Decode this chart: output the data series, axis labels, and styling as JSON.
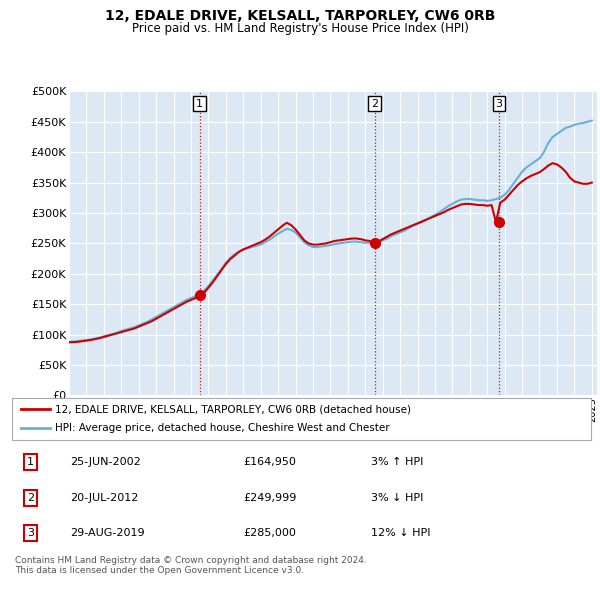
{
  "title": "12, EDALE DRIVE, KELSALL, TARPORLEY, CW6 0RB",
  "subtitle": "Price paid vs. HM Land Registry's House Price Index (HPI)",
  "legend_label_red": "12, EDALE DRIVE, KELSALL, TARPORLEY, CW6 0RB (detached house)",
  "legend_label_blue": "HPI: Average price, detached house, Cheshire West and Chester",
  "footer": "Contains HM Land Registry data © Crown copyright and database right 2024.\nThis data is licensed under the Open Government Licence v3.0.",
  "transactions": [
    {
      "num": "1",
      "date": "25-JUN-2002",
      "price": "£164,950",
      "hpi": "3% ↑ HPI",
      "year": 2002.5
    },
    {
      "num": "2",
      "date": "20-JUL-2012",
      "price": "£249,999",
      "hpi": "3% ↓ HPI",
      "year": 2012.55
    },
    {
      "num": "3",
      "date": "29-AUG-2019",
      "price": "£285,000",
      "hpi": "12% ↓ HPI",
      "year": 2019.67
    }
  ],
  "trans_prices": [
    164950,
    249999,
    285000
  ],
  "ylim": [
    0,
    500000
  ],
  "yticks": [
    0,
    50000,
    100000,
    150000,
    200000,
    250000,
    300000,
    350000,
    400000,
    450000,
    500000
  ],
  "background_color": "#ffffff",
  "plot_bg_color": "#dce9f5",
  "grid_color": "#ffffff",
  "red_color": "#cc0000",
  "blue_color": "#6baed6",
  "years_hpi": [
    1995.0,
    1995.25,
    1995.5,
    1995.75,
    1996.0,
    1996.25,
    1996.5,
    1996.75,
    1997.0,
    1997.25,
    1997.5,
    1997.75,
    1998.0,
    1998.25,
    1998.5,
    1998.75,
    1999.0,
    1999.25,
    1999.5,
    1999.75,
    2000.0,
    2000.25,
    2000.5,
    2000.75,
    2001.0,
    2001.25,
    2001.5,
    2001.75,
    2002.0,
    2002.25,
    2002.5,
    2002.75,
    2003.0,
    2003.25,
    2003.5,
    2003.75,
    2004.0,
    2004.25,
    2004.5,
    2004.75,
    2005.0,
    2005.25,
    2005.5,
    2005.75,
    2006.0,
    2006.25,
    2006.5,
    2006.75,
    2007.0,
    2007.25,
    2007.5,
    2007.75,
    2008.0,
    2008.25,
    2008.5,
    2008.75,
    2009.0,
    2009.25,
    2009.5,
    2009.75,
    2010.0,
    2010.25,
    2010.5,
    2010.75,
    2011.0,
    2011.25,
    2011.5,
    2011.75,
    2012.0,
    2012.25,
    2012.5,
    2012.75,
    2013.0,
    2013.25,
    2013.5,
    2013.75,
    2014.0,
    2014.25,
    2014.5,
    2014.75,
    2015.0,
    2015.25,
    2015.5,
    2015.75,
    2016.0,
    2016.25,
    2016.5,
    2016.75,
    2017.0,
    2017.25,
    2017.5,
    2017.75,
    2018.0,
    2018.25,
    2018.5,
    2018.75,
    2019.0,
    2019.25,
    2019.5,
    2019.75,
    2020.0,
    2020.25,
    2020.5,
    2020.75,
    2021.0,
    2021.25,
    2021.5,
    2021.75,
    2022.0,
    2022.25,
    2022.5,
    2022.75,
    2023.0,
    2023.25,
    2023.5,
    2023.75,
    2024.0,
    2024.25,
    2024.5,
    2024.75,
    2025.0
  ],
  "hpi_values": [
    88000,
    88500,
    89000,
    90000,
    91000,
    92000,
    93500,
    95000,
    97000,
    99000,
    101000,
    103000,
    106000,
    108000,
    110000,
    112000,
    115000,
    118000,
    121000,
    125000,
    129000,
    133000,
    137000,
    141000,
    145000,
    149000,
    153000,
    157000,
    160000,
    163000,
    166000,
    172000,
    180000,
    189000,
    198000,
    208000,
    218000,
    226000,
    232000,
    236000,
    240000,
    242000,
    244000,
    246000,
    248000,
    252000,
    256000,
    261000,
    266000,
    270000,
    274000,
    272000,
    268000,
    260000,
    252000,
    247000,
    244000,
    244000,
    245000,
    246000,
    247000,
    249000,
    250000,
    251000,
    252000,
    253000,
    253000,
    252000,
    251000,
    251000,
    252000,
    253000,
    255000,
    258000,
    262000,
    265000,
    268000,
    271000,
    275000,
    279000,
    282000,
    285000,
    289000,
    293000,
    297000,
    301000,
    306000,
    311000,
    315000,
    319000,
    322000,
    323000,
    323000,
    322000,
    321000,
    321000,
    320000,
    321000,
    323000,
    325000,
    330000,
    338000,
    348000,
    358000,
    368000,
    375000,
    380000,
    385000,
    390000,
    400000,
    415000,
    425000,
    430000,
    435000,
    440000,
    442000,
    445000,
    447000,
    448000,
    450000,
    452000
  ],
  "red_values": [
    87000,
    87500,
    88000,
    89000,
    90000,
    91000,
    92500,
    94000,
    96000,
    98000,
    100000,
    102000,
    104000,
    106000,
    108000,
    110000,
    113000,
    116000,
    119000,
    122000,
    126000,
    130000,
    134000,
    138000,
    142000,
    146000,
    150000,
    154000,
    157000,
    160000,
    164950,
    169000,
    177000,
    186000,
    196000,
    206000,
    216000,
    224000,
    230000,
    236000,
    240000,
    243000,
    246000,
    249000,
    252000,
    256000,
    261000,
    267000,
    273000,
    279000,
    284000,
    280000,
    273000,
    264000,
    255000,
    250000,
    248000,
    248000,
    249000,
    250000,
    252000,
    254000,
    255000,
    256000,
    257000,
    258000,
    258000,
    257000,
    255000,
    254000,
    249999,
    253000,
    257000,
    261000,
    265000,
    268000,
    271000,
    274000,
    277000,
    280000,
    283000,
    286000,
    289000,
    292000,
    295000,
    298000,
    301000,
    305000,
    308000,
    311000,
    314000,
    315000,
    315000,
    314000,
    313000,
    313000,
    312000,
    313000,
    285000,
    317000,
    322000,
    330000,
    338000,
    346000,
    352000,
    357000,
    361000,
    364000,
    367000,
    372000,
    378000,
    382000,
    380000,
    375000,
    368000,
    358000,
    352000,
    350000,
    348000,
    348000,
    350000
  ]
}
